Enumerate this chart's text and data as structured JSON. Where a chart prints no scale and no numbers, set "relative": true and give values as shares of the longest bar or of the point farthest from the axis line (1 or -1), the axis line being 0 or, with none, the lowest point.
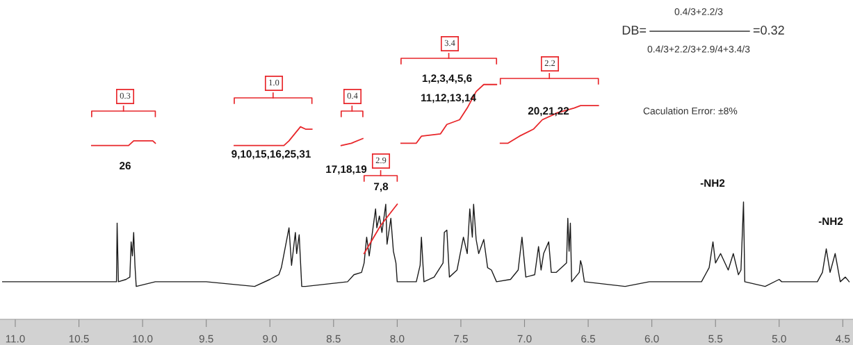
{
  "chart_data": {
    "type": "line",
    "relative": true,
    "xlim": [
      11.12,
      4.42
    ],
    "xticks": [
      {
        "value": 11.0,
        "label": "11.0"
      },
      {
        "value": 10.5,
        "label": "10.5"
      },
      {
        "value": 10.0,
        "label": "10.0"
      },
      {
        "value": 9.5,
        "label": "9.5"
      },
      {
        "value": 9.0,
        "label": "9.0"
      },
      {
        "value": 8.5,
        "label": "8.5"
      },
      {
        "value": 8.0,
        "label": "8.0"
      },
      {
        "value": 7.5,
        "label": "7.5"
      },
      {
        "value": 7.0,
        "label": "7.0"
      },
      {
        "value": 6.5,
        "label": "6.5"
      },
      {
        "value": 6.0,
        "label": "6.0"
      },
      {
        "value": 5.5,
        "label": "5.5"
      },
      {
        "value": 5.0,
        "label": "5.0"
      },
      {
        "value": 4.5,
        "label": "4.5"
      }
    ],
    "series": [
      {
        "color": "#1a1a1a",
        "x": [
          11.1,
          10.8,
          10.5,
          10.22,
          10.205,
          10.2,
          10.19,
          10.13,
          10.1,
          10.09,
          10.08,
          10.07,
          10.06,
          10.05,
          9.9,
          9.5,
          9.12,
          9.0,
          8.93,
          8.91,
          8.85,
          8.83,
          8.8,
          8.79,
          8.77,
          8.75,
          8.72,
          8.39,
          8.34,
          8.28,
          8.26,
          8.24,
          8.22,
          8.2,
          8.17,
          8.16,
          8.14,
          8.12,
          8.09,
          8.08,
          8.05,
          8.03,
          8.01,
          8.0,
          7.85,
          7.82,
          7.81,
          7.79,
          7.71,
          7.64,
          7.63,
          7.61,
          7.59,
          7.53,
          7.48,
          7.45,
          7.43,
          7.41,
          7.4,
          7.38,
          7.36,
          7.32,
          7.29,
          7.26,
          7.22,
          7.11,
          7.05,
          7.02,
          6.99,
          6.92,
          6.89,
          6.87,
          6.85,
          6.81,
          6.79,
          6.75,
          6.71,
          6.67,
          6.66,
          6.65,
          6.64,
          6.63,
          6.57,
          6.56,
          6.55,
          6.53,
          6.21,
          6.02,
          5.72,
          5.61,
          5.55,
          5.52,
          5.5,
          5.46,
          5.4,
          5.36,
          5.32,
          5.3,
          5.28,
          5.27,
          5.11,
          5.0,
          4.98,
          4.7,
          4.66,
          4.63,
          4.6,
          4.56,
          4.52,
          4.48,
          4.45
        ],
        "values": [
          0.16,
          0.16,
          0.16,
          0.16,
          0.16,
          0.41,
          0.16,
          0.17,
          0.18,
          0.33,
          0.27,
          0.37,
          0.23,
          0.14,
          0.16,
          0.16,
          0.14,
          0.17,
          0.19,
          0.22,
          0.39,
          0.23,
          0.37,
          0.28,
          0.36,
          0.14,
          0.14,
          0.16,
          0.19,
          0.2,
          0.24,
          0.35,
          0.27,
          0.35,
          0.47,
          0.39,
          0.44,
          0.37,
          0.49,
          0.32,
          0.43,
          0.29,
          0.24,
          0.16,
          0.16,
          0.23,
          0.35,
          0.16,
          0.18,
          0.24,
          0.37,
          0.38,
          0.18,
          0.21,
          0.35,
          0.28,
          0.47,
          0.35,
          0.49,
          0.34,
          0.28,
          0.34,
          0.22,
          0.21,
          0.16,
          0.17,
          0.21,
          0.35,
          0.18,
          0.19,
          0.31,
          0.21,
          0.28,
          0.33,
          0.2,
          0.2,
          0.22,
          0.24,
          0.43,
          0.29,
          0.41,
          0.16,
          0.2,
          0.25,
          0.23,
          0.16,
          0.14,
          0.16,
          0.16,
          0.16,
          0.22,
          0.33,
          0.24,
          0.28,
          0.21,
          0.28,
          0.19,
          0.21,
          0.5,
          0.16,
          0.14,
          0.17,
          0.16,
          0.16,
          0.2,
          0.3,
          0.2,
          0.28,
          0.16,
          0.18,
          0.16
        ]
      },
      {
        "color": "#e8262a",
        "x": [
          10.4,
          10.11,
          10.07,
          9.92,
          9.9
        ],
        "values": [
          0.74,
          0.74,
          0.76,
          0.76,
          0.75
        ]
      },
      {
        "color": "#e8262a",
        "x": [
          9.28,
          8.89,
          8.85,
          8.76,
          8.72,
          8.67
        ],
        "values": [
          0.74,
          0.74,
          0.76,
          0.82,
          0.81,
          0.81
        ]
      },
      {
        "color": "#e8262a",
        "x": [
          8.44,
          8.36,
          8.27
        ],
        "values": [
          0.74,
          0.75,
          0.77
        ]
      },
      {
        "color": "#e8262a",
        "x": [
          8.26,
          8.13,
          8.0
        ],
        "values": [
          0.28,
          0.4,
          0.49
        ]
      },
      {
        "color": "#e8262a",
        "x": [
          7.97,
          7.85,
          7.81,
          7.66,
          7.61,
          7.51,
          7.45,
          7.38,
          7.32,
          7.22
        ],
        "values": [
          0.75,
          0.75,
          0.78,
          0.79,
          0.83,
          0.85,
          0.9,
          0.97,
          1.0,
          1.0
        ]
      },
      {
        "color": "#e8262a",
        "x": [
          7.19,
          7.13,
          7.04,
          6.93,
          6.86,
          6.74,
          6.61,
          6.56,
          6.42
        ],
        "values": [
          0.75,
          0.75,
          0.78,
          0.81,
          0.85,
          0.88,
          0.9,
          0.91,
          0.91
        ]
      }
    ],
    "annotations": [
      "0.3",
      "1.0",
      "0.4",
      "2.9",
      "3.4",
      "2.2",
      "26",
      "9,10,15,16,25,31",
      "17,18,19",
      "7,8",
      "1,2,3,4,5,6",
      "11,12,13,14",
      "20,21,22",
      "-NH2",
      "-NH2",
      "DB=",
      "0.4/3+2.2/3",
      "0.4/3+2.2/3+2.9/4+3.4/3",
      "=0.32",
      "Caculation Error: ±8%"
    ]
  }
}
